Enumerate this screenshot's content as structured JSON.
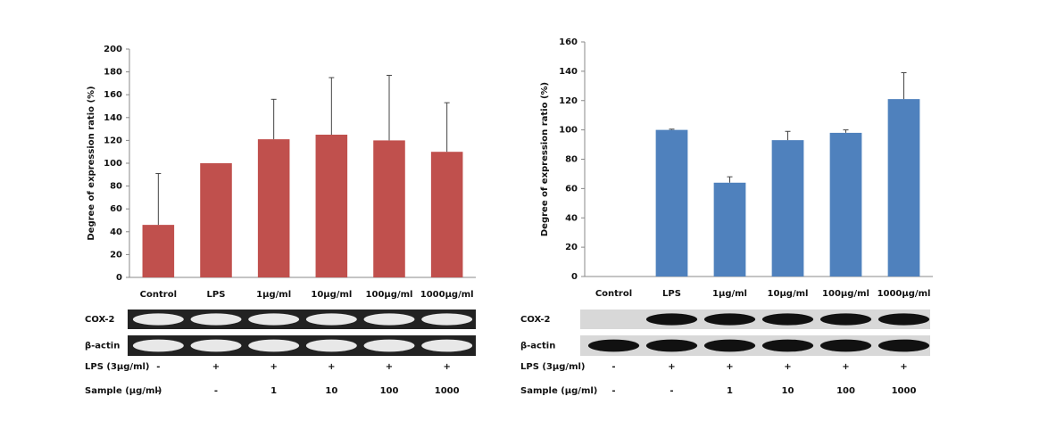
{
  "chart_data": [
    {
      "type": "bar",
      "y_label": "Degree of expression ratio (%)",
      "categories": [
        "Control",
        "LPS",
        "1μg/ml",
        "10μg/ml",
        "100μg/ml",
        "1000μg/ml"
      ],
      "values": [
        46,
        100,
        121,
        125,
        120,
        110
      ],
      "errors": [
        45,
        0,
        35,
        50,
        57,
        43
      ],
      "color": "#c0504d",
      "ylim": [
        0,
        200
      ],
      "yticks": [
        0,
        20,
        40,
        60,
        80,
        100,
        120,
        140,
        160,
        180,
        200
      ],
      "gel_labels": [
        "COX-2",
        "β-actin"
      ],
      "treatment_rows": [
        {
          "label": "LPS (3μg/ml)",
          "values": [
            "-",
            "+",
            "+",
            "+",
            "+",
            "+"
          ]
        },
        {
          "label": "Sample (μg/ml)",
          "values": [
            "-",
            "-",
            "1",
            "10",
            "100",
            "1000"
          ]
        }
      ]
    },
    {
      "type": "bar",
      "y_label": "Degree of expression ratio (%)",
      "categories": [
        "Control",
        "LPS",
        "1μg/ml",
        "10μg/ml",
        "100μg/ml",
        "1000μg/ml"
      ],
      "values": [
        0,
        100,
        64,
        93,
        98,
        121
      ],
      "errors": [
        0,
        0.5,
        4,
        6,
        2,
        18
      ],
      "color": "#4f81bd",
      "ylim": [
        0,
        160
      ],
      "yticks": [
        0,
        20,
        40,
        60,
        80,
        100,
        120,
        140,
        160
      ],
      "gel_labels": [
        "COX-2",
        "β-actin"
      ],
      "treatment_rows": [
        {
          "label": "LPS (3μg/ml)",
          "values": [
            "-",
            "+",
            "+",
            "+",
            "+",
            "+"
          ]
        },
        {
          "label": "Sample (μg/ml)",
          "values": [
            "-",
            "-",
            "1",
            "10",
            "100",
            "1000"
          ]
        }
      ]
    }
  ]
}
